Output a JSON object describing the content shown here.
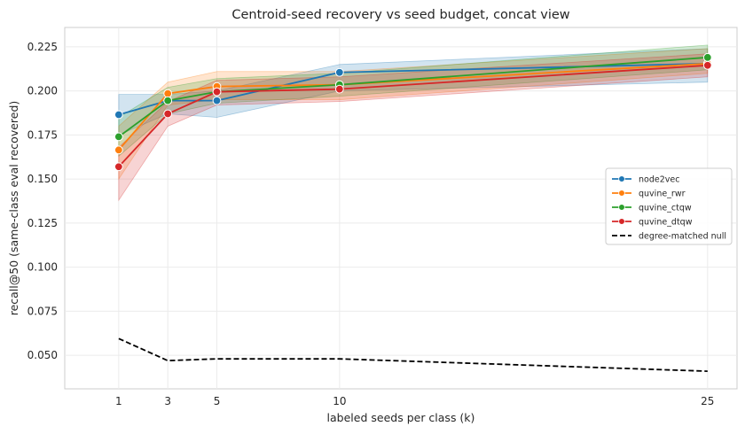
{
  "chart_data": {
    "type": "line",
    "title": "Centroid-seed recovery vs seed budget, concat view",
    "xlabel": "labeled seeds per class (k)",
    "ylabel": "recall@50 (same-class eval recovered)",
    "x": [
      1,
      3,
      5,
      10,
      25
    ],
    "xticks": [
      "1",
      "3",
      "5",
      "10",
      "25"
    ],
    "xlim": [
      -1.2,
      26.2
    ],
    "ylim": [
      0.031,
      0.236
    ],
    "yticks": [
      "0.050",
      "0.075",
      "0.100",
      "0.125",
      "0.150",
      "0.175",
      "0.200",
      "0.225"
    ],
    "grid": true,
    "legend_position": "right",
    "series": [
      {
        "name": "node2vec",
        "color": "#1f77b4",
        "values": [
          0.1865,
          0.1945,
          0.1945,
          0.2105,
          0.2155
        ],
        "ci_low": [
          0.175,
          0.187,
          0.185,
          0.2,
          0.205
        ],
        "ci_high": [
          0.198,
          0.198,
          0.2,
          0.215,
          0.224
        ]
      },
      {
        "name": "quvine_rwr",
        "color": "#ff7f0e",
        "values": [
          0.1665,
          0.1985,
          0.2025,
          0.2035,
          0.2155
        ],
        "ci_low": [
          0.15,
          0.192,
          0.195,
          0.195,
          0.21
        ],
        "ci_high": [
          0.18,
          0.205,
          0.211,
          0.211,
          0.224
        ]
      },
      {
        "name": "quvine_ctqw",
        "color": "#2ca02c",
        "values": [
          0.174,
          0.1945,
          0.1995,
          0.2035,
          0.219
        ],
        "ci_low": [
          0.163,
          0.187,
          0.193,
          0.197,
          0.212
        ],
        "ci_high": [
          0.185,
          0.202,
          0.207,
          0.21,
          0.226
        ]
      },
      {
        "name": "quvine_dtqw",
        "color": "#d62728",
        "values": [
          0.157,
          0.187,
          0.1995,
          0.201,
          0.2145
        ],
        "ci_low": [
          0.138,
          0.18,
          0.192,
          0.194,
          0.208
        ],
        "ci_high": [
          0.168,
          0.194,
          0.206,
          0.208,
          0.221
        ]
      },
      {
        "name": "degree-matched null",
        "color": "#000000",
        "dashed": true,
        "values": [
          0.0595,
          0.047,
          0.048,
          0.048,
          0.041
        ]
      }
    ]
  }
}
